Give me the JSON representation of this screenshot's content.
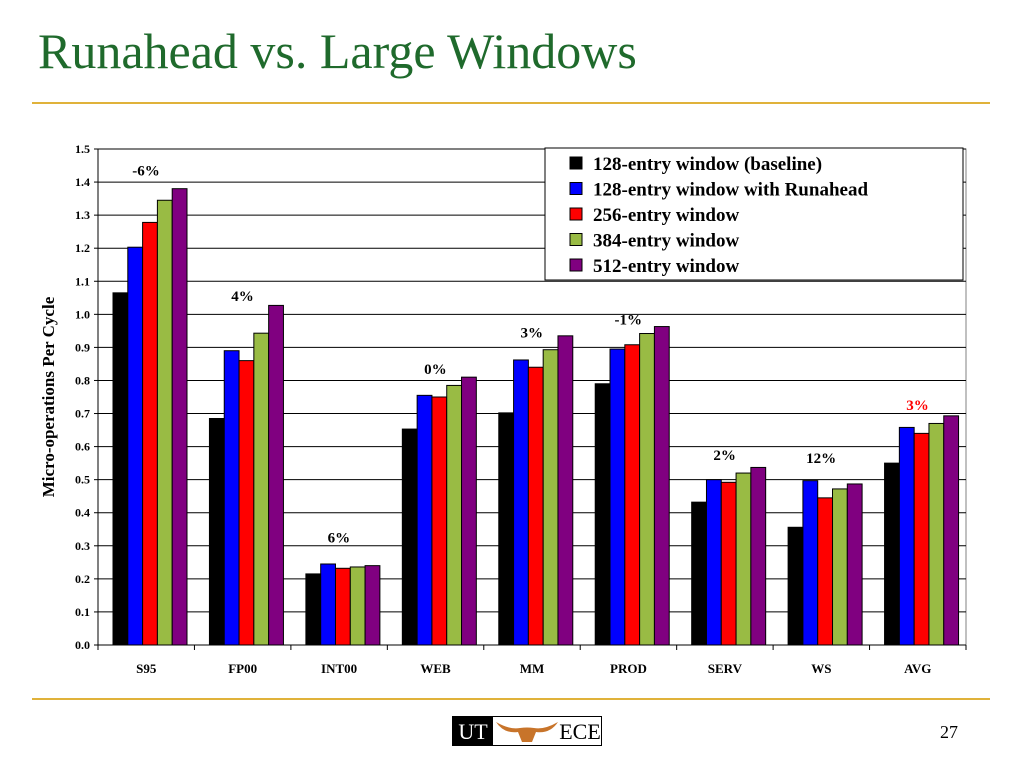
{
  "slide": {
    "title": "Runahead vs. Large Windows",
    "page_number": "27"
  },
  "logo": {
    "left_text": "UT",
    "right_text": "ECE",
    "icon": "longhorn-icon",
    "color": "#c8742a"
  },
  "chart_data": {
    "type": "bar",
    "title": "",
    "xlabel": "",
    "ylabel": "Micro-operations Per Cycle",
    "ylim": [
      0,
      1.5
    ],
    "yticks": [
      "0.0",
      "0.1",
      "0.2",
      "0.3",
      "0.4",
      "0.5",
      "0.6",
      "0.7",
      "0.8",
      "0.9",
      "1.0",
      "1.1",
      "1.2",
      "1.3",
      "1.4",
      "1.5"
    ],
    "grid": true,
    "legend_position": "top-right",
    "categories": [
      "S95",
      "FP00",
      "INT00",
      "WEB",
      "MM",
      "PROD",
      "SERV",
      "WS",
      "AVG"
    ],
    "series": [
      {
        "name": "128-entry window (baseline)",
        "color": "#000000",
        "values": [
          1.065,
          0.685,
          0.215,
          0.653,
          0.702,
          0.79,
          0.432,
          0.356,
          0.55
        ]
      },
      {
        "name": "128-entry window with Runahead",
        "color": "#0000ff",
        "values": [
          1.203,
          0.89,
          0.245,
          0.755,
          0.862,
          0.895,
          0.5,
          0.497,
          0.658
        ]
      },
      {
        "name": "256-entry window",
        "color": "#ff0000",
        "values": [
          1.278,
          0.86,
          0.232,
          0.75,
          0.84,
          0.908,
          0.492,
          0.445,
          0.64
        ]
      },
      {
        "name": "384-entry window",
        "color": "#99bb44",
        "values": [
          1.345,
          0.943,
          0.236,
          0.785,
          0.893,
          0.942,
          0.52,
          0.472,
          0.67
        ]
      },
      {
        "name": "512-entry window",
        "color": "#800080",
        "values": [
          1.38,
          1.027,
          0.24,
          0.81,
          0.935,
          0.963,
          0.537,
          0.487,
          0.693
        ]
      }
    ],
    "annotations": [
      {
        "category": "S95",
        "text": "-6%",
        "y": 1.42,
        "color": "#000000"
      },
      {
        "category": "FP00",
        "text": "4%",
        "y": 1.04,
        "color": "#000000"
      },
      {
        "category": "INT00",
        "text": "6%",
        "y": 0.31,
        "color": "#000000"
      },
      {
        "category": "WEB",
        "text": "0%",
        "y": 0.82,
        "color": "#000000"
      },
      {
        "category": "MM",
        "text": "3%",
        "y": 0.93,
        "color": "#000000"
      },
      {
        "category": "PROD",
        "text": "-1%",
        "y": 0.97,
        "color": "#000000"
      },
      {
        "category": "SERV",
        "text": "2%",
        "y": 0.56,
        "color": "#000000"
      },
      {
        "category": "WS",
        "text": "12%",
        "y": 0.55,
        "color": "#000000"
      },
      {
        "category": "AVG",
        "text": "3%",
        "y": 0.71,
        "color": "#ff0000"
      }
    ]
  }
}
